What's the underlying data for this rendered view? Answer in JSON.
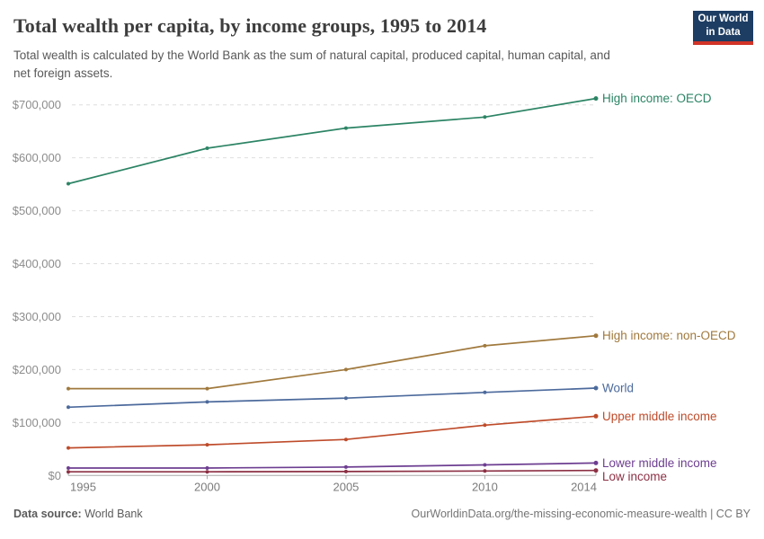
{
  "header": {
    "title": "Total wealth per capita, by income groups, 1995 to 2014",
    "subtitle": "Total wealth is calculated by the World Bank as the sum of natural capital, produced capital, human capital, and\nnet foreign assets.",
    "logo": {
      "line1": "Our World",
      "line2": "in Data",
      "bg_color": "#1d3d63",
      "accent_color": "#d13327"
    }
  },
  "footer": {
    "datasource_label": "Data source:",
    "datasource_value": "World Bank",
    "url": "OurWorldinData.org/the-missing-economic-measure-wealth",
    "license": "| CC BY"
  },
  "chart_data": {
    "type": "line",
    "title": "Total wealth per capita, by income groups, 1995 to 2014",
    "x": [
      1995,
      2000,
      2005,
      2010,
      2014
    ],
    "x_tick_labels": [
      "1995",
      "2000",
      "2005",
      "2010",
      "2014"
    ],
    "ylim": [
      0,
      700000
    ],
    "ytick_step": 100000,
    "ytick_labels": [
      "$0",
      "$100,000",
      "$200,000",
      "$300,000",
      "$400,000",
      "$500,000",
      "$600,000",
      "$700,000"
    ],
    "grid": true,
    "legend_position": "labels-at-line-ends",
    "unit": "US$ per capita",
    "series": [
      {
        "name": "High income: OECD",
        "color": "#2c8465",
        "values": [
          551000,
          618000,
          656000,
          677000,
          712000
        ]
      },
      {
        "name": "High income: non-OECD",
        "color": "#a0793d",
        "values": [
          164000,
          164000,
          200000,
          245000,
          264000
        ]
      },
      {
        "name": "World",
        "color": "#4c6a9c",
        "values": [
          129000,
          139000,
          146000,
          157000,
          165000
        ]
      },
      {
        "name": "Upper middle income",
        "color": "#be4b2a",
        "values": [
          52000,
          58000,
          68000,
          95000,
          112000
        ]
      },
      {
        "name": "Lower middle income",
        "color": "#6d3e91",
        "values": [
          14000,
          14000,
          16000,
          20000,
          23500
        ]
      },
      {
        "name": "Low income",
        "color": "#8c3044",
        "values": [
          7000,
          7000,
          7500,
          8500,
          9500
        ]
      }
    ]
  }
}
